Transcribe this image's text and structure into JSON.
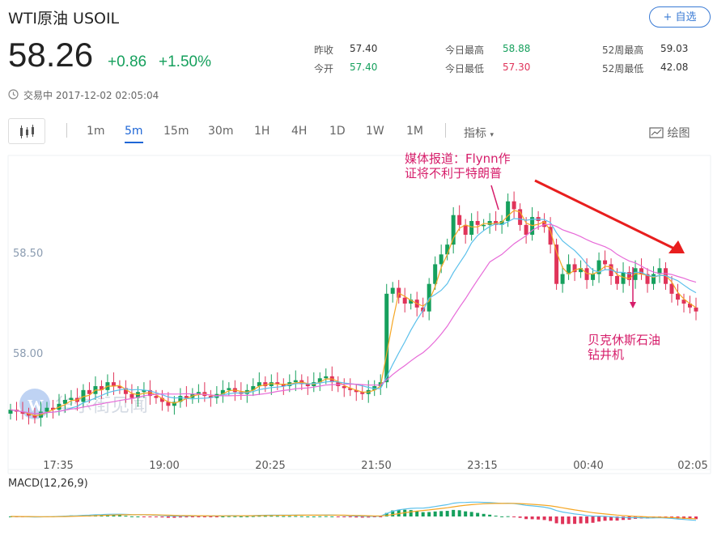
{
  "header": {
    "title": "WTI原油 USOIL",
    "favorite_label": "+ 自选",
    "price": "58.26",
    "change": "+0.86",
    "change_pct": "+1.50%",
    "status": "交易中 2017-12-02 02:05:04"
  },
  "stats": [
    {
      "label": "昨收",
      "value": "57.40",
      "color": "#333333"
    },
    {
      "label": "今开",
      "value": "57.40",
      "color": "#16a05d"
    },
    {
      "label": "今日最高",
      "value": "58.88",
      "color": "#16a05d"
    },
    {
      "label": "今日最低",
      "value": "57.30",
      "color": "#e0345a"
    },
    {
      "label": "52周最高",
      "value": "59.03",
      "color": "#333333"
    },
    {
      "label": "52周最低",
      "value": "42.08",
      "color": "#333333"
    }
  ],
  "toolbar": {
    "periods": [
      "1m",
      "5m",
      "15m",
      "30m",
      "1H",
      "4H",
      "1D",
      "1W",
      "1M"
    ],
    "active_period": "5m",
    "indicator_label": "指标",
    "draw_label": "绘图"
  },
  "watermark": "华尔街见闻",
  "colors": {
    "up": "#16a05d",
    "down": "#e0345a",
    "accent": "#1e66d6",
    "annotation": "#d61d6a"
  },
  "chart_data": {
    "type": "candlestick",
    "x_tick_labels": [
      "17:35",
      "19:00",
      "20:25",
      "21:50",
      "23:15",
      "00:40",
      "02:05"
    ],
    "y_tick_labels": [
      "58.50",
      "58.00"
    ],
    "ylim": [
      57.6,
      59.0
    ],
    "ma_series": [
      "MA-short",
      "MA-mid",
      "MA-long"
    ],
    "annotations": [
      {
        "text": "媒体报道：Flynn作证将不利于特朗普"
      },
      {
        "text": "贝克休斯石油钻井机"
      }
    ],
    "macd_label": "MACD(12,26,9)",
    "candles_approx_close": [
      57.76,
      57.75,
      57.74,
      57.73,
      57.72,
      57.75,
      57.77,
      57.76,
      57.79,
      57.81,
      57.82,
      57.8,
      57.86,
      57.84,
      57.88,
      57.86,
      57.9,
      57.88,
      57.87,
      57.84,
      57.82,
      57.85,
      57.86,
      57.83,
      57.82,
      57.8,
      57.78,
      57.8,
      57.83,
      57.82,
      57.84,
      57.85,
      57.83,
      57.82,
      57.84,
      57.86,
      57.87,
      57.85,
      57.84,
      57.86,
      57.88,
      57.9,
      57.88,
      57.9,
      57.89,
      57.88,
      57.9,
      57.91,
      57.89,
      57.88,
      57.9,
      57.92,
      57.93,
      57.9,
      57.88,
      57.87,
      57.86,
      57.85,
      57.84,
      57.86,
      57.88,
      57.9,
      58.35,
      58.38,
      58.33,
      58.3,
      58.32,
      58.28,
      58.26,
      58.4,
      58.5,
      58.55,
      58.6,
      58.75,
      58.7,
      58.65,
      58.72,
      58.7,
      58.7,
      58.72,
      58.7,
      58.72,
      58.82,
      58.78,
      58.7,
      58.65,
      58.74,
      58.72,
      58.69,
      58.6,
      58.4,
      58.45,
      58.5,
      58.46,
      58.48,
      58.42,
      58.45,
      58.52,
      58.5,
      58.44,
      58.4,
      58.46,
      58.42,
      58.48,
      58.45,
      58.4,
      58.45,
      58.48,
      58.4,
      58.35,
      58.32,
      58.3,
      58.28,
      58.26
    ]
  }
}
